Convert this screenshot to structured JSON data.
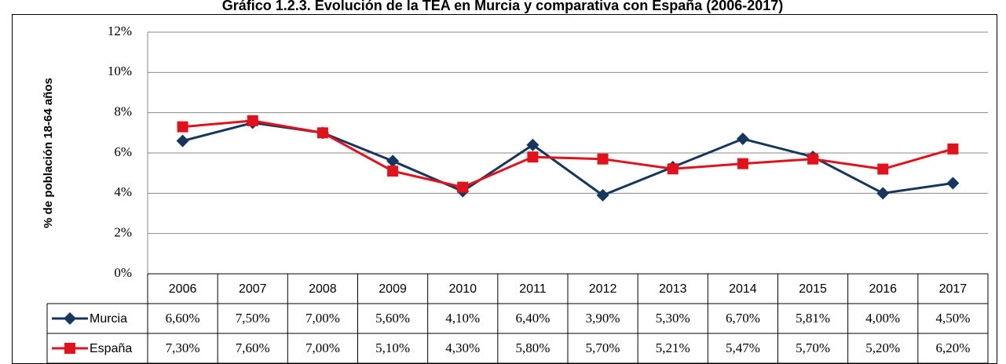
{
  "chart_data": {
    "type": "line",
    "title": "Gráfico 1.2.3. Evolución de la TEA en Murcia y comparativa con España (2006-2017)",
    "ylabel": "% de población 18-64 años",
    "categories": [
      "2006",
      "2007",
      "2008",
      "2009",
      "2010",
      "2011",
      "2012",
      "2013",
      "2014",
      "2015",
      "2016",
      "2017"
    ],
    "series": [
      {
        "name": "Murcia",
        "color": "#17365d",
        "marker": "diamond",
        "values": [
          6.6,
          7.5,
          7.0,
          5.6,
          4.1,
          6.4,
          3.9,
          5.3,
          6.7,
          5.81,
          4.0,
          4.5
        ],
        "value_labels": [
          "6,60%",
          "7,50%",
          "7,00%",
          "5,60%",
          "4,10%",
          "6,40%",
          "3,90%",
          "5,30%",
          "6,70%",
          "5,81%",
          "4,00%",
          "4,50%"
        ]
      },
      {
        "name": "España",
        "color": "#e0121b",
        "marker": "square",
        "values": [
          7.3,
          7.6,
          7.0,
          5.1,
          4.3,
          5.8,
          5.7,
          5.21,
          5.47,
          5.7,
          5.2,
          6.2
        ],
        "value_labels": [
          "7,30%",
          "7,60%",
          "7,00%",
          "5,10%",
          "4,30%",
          "5,80%",
          "5,70%",
          "5,21%",
          "5,47%",
          "5,70%",
          "5,20%",
          "6,20%"
        ]
      }
    ],
    "ylim": [
      0,
      12
    ],
    "yticks": [
      {
        "value": 0,
        "label": "0%"
      },
      {
        "value": 2,
        "label": "2%"
      },
      {
        "value": 4,
        "label": "4%"
      },
      {
        "value": 6,
        "label": "6%"
      },
      {
        "value": 8,
        "label": "8%"
      },
      {
        "value": 10,
        "label": "10%"
      },
      {
        "value": 12,
        "label": "12%"
      }
    ],
    "grid": true
  }
}
